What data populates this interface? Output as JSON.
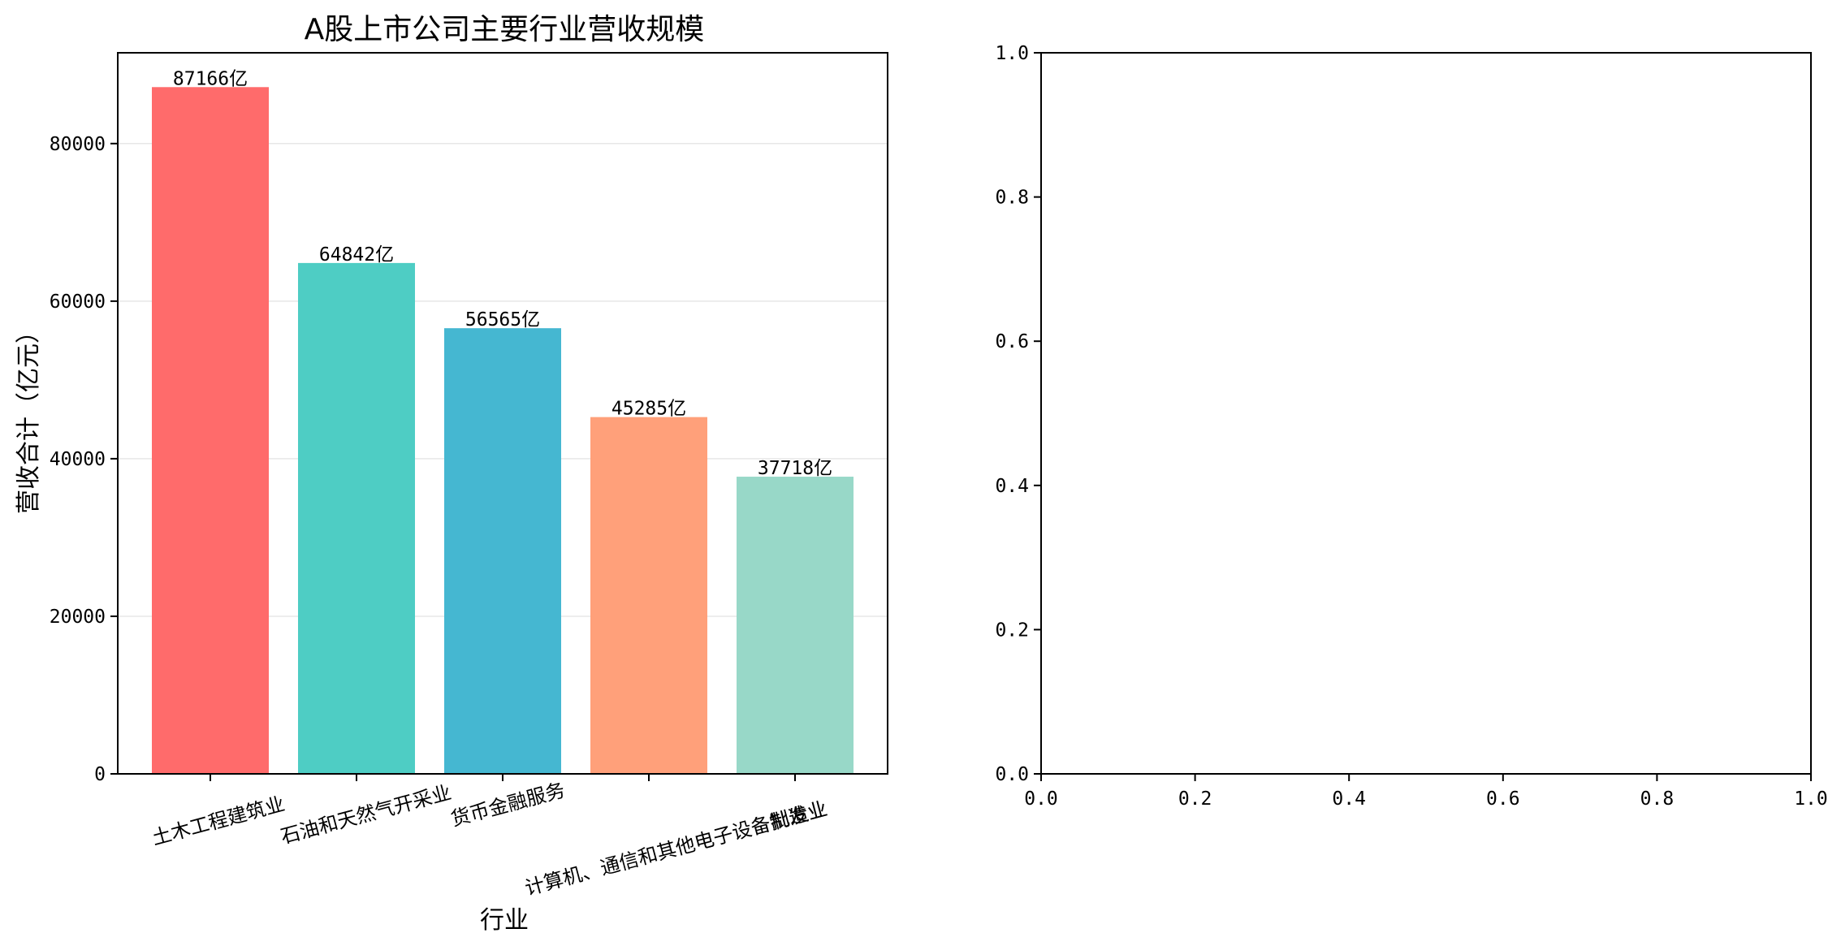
{
  "chart_data": [
    {
      "type": "bar",
      "title": "A股上市公司主要行业营收规模",
      "xlabel": "行业",
      "ylabel": "营收合计（亿元）",
      "categories": [
        "土木工程建筑业",
        "石油和天然气开采业",
        "货币金融服务",
        "计算机、通信和其他电子设备制造业",
        "批发业"
      ],
      "values": [
        87166,
        64842,
        56565,
        45285,
        37718
      ],
      "value_labels": [
        "87166亿",
        "64842亿",
        "56565亿",
        "45285亿",
        "37718亿"
      ],
      "colors": [
        "#ff6b6b",
        "#4ecdc4",
        "#45b7d1",
        "#ffa07a",
        "#98d8c8"
      ],
      "ylim": [
        0,
        91524
      ],
      "yticks": [
        0,
        20000,
        40000,
        60000,
        80000
      ],
      "grid": "y"
    },
    {
      "type": "scatter",
      "title": "",
      "xlabel": "",
      "ylabel": "",
      "xlim": [
        0,
        1
      ],
      "ylim": [
        0,
        1
      ],
      "xticks": [
        "0.0",
        "0.2",
        "0.4",
        "0.6",
        "0.8",
        "1.0"
      ],
      "yticks": [
        "0.0",
        "0.2",
        "0.4",
        "0.6",
        "0.8",
        "1.0"
      ],
      "values": []
    }
  ]
}
